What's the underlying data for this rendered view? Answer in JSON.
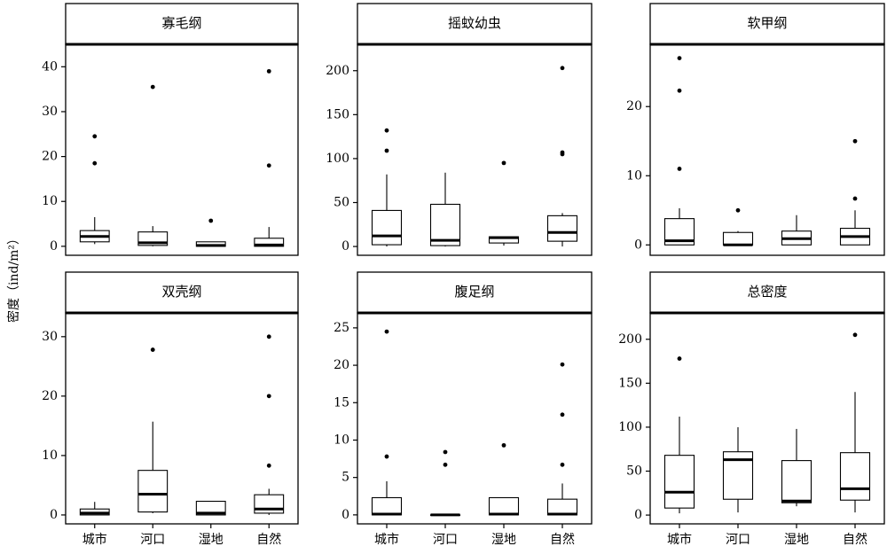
{
  "chart_data": {
    "type": "boxplot",
    "ylabel": "密度（ind/m²）",
    "categories": [
      "城市",
      "河口",
      "湿地",
      "自然"
    ],
    "panels": [
      {
        "title": "寡毛纲",
        "ylim": [
          -2,
          45
        ],
        "yticks": [
          0,
          10,
          20,
          30,
          40
        ],
        "boxes": [
          {
            "category": "城市",
            "whislo": 0.5,
            "q1": 1.0,
            "median": 2.2,
            "q3": 3.5,
            "whishi": 6.5,
            "outliers": [
              18.5,
              24.5
            ]
          },
          {
            "category": "河口",
            "whislo": 0,
            "q1": 0.2,
            "median": 0.8,
            "q3": 3.2,
            "whishi": 4.5,
            "outliers": [
              35.5
            ]
          },
          {
            "category": "湿地",
            "whislo": 0,
            "q1": 0,
            "median": 0.2,
            "q3": 1.0,
            "whishi": 1.0,
            "outliers": [
              5.7
            ]
          },
          {
            "category": "自然",
            "whislo": 0,
            "q1": 0,
            "median": 0.3,
            "q3": 1.8,
            "whishi": 4.3,
            "outliers": [
              18.0,
              39.0
            ]
          }
        ]
      },
      {
        "title": "摇蚊幼虫",
        "ylim": [
          -10,
          230
        ],
        "yticks": [
          0,
          50,
          100,
          150,
          200
        ],
        "boxes": [
          {
            "category": "城市",
            "whislo": 0,
            "q1": 2,
            "median": 12,
            "q3": 41,
            "whishi": 82,
            "outliers": [
              109,
              132
            ]
          },
          {
            "category": "河口",
            "whislo": 0,
            "q1": 1,
            "median": 7,
            "q3": 48,
            "whishi": 84,
            "outliers": []
          },
          {
            "category": "湿地",
            "whislo": 1,
            "q1": 4,
            "median": 10,
            "q3": 11,
            "whishi": 11,
            "outliers": [
              95
            ]
          },
          {
            "category": "自然",
            "whislo": 0,
            "q1": 6,
            "median": 16,
            "q3": 35,
            "whishi": 38,
            "outliers": [
              105,
              107,
              203
            ]
          }
        ]
      },
      {
        "title": "软甲纲",
        "ylim": [
          -1.5,
          29
        ],
        "yticks": [
          0,
          10,
          20
        ],
        "boxes": [
          {
            "category": "城市",
            "whislo": 0,
            "q1": 0,
            "median": 0.6,
            "q3": 3.8,
            "whishi": 5.3,
            "outliers": [
              11,
              22.3,
              27
            ]
          },
          {
            "category": "河口",
            "whislo": 0,
            "q1": 0,
            "median": 0,
            "q3": 1.8,
            "whishi": 2.0,
            "outliers": [
              5.0
            ]
          },
          {
            "category": "湿地",
            "whislo": 0,
            "q1": 0,
            "median": 0.9,
            "q3": 2.0,
            "whishi": 4.3,
            "outliers": []
          },
          {
            "category": "自然",
            "whislo": 0,
            "q1": 0,
            "median": 1.2,
            "q3": 2.4,
            "whishi": 5.0,
            "outliers": [
              6.7,
              15
            ]
          }
        ]
      },
      {
        "title": "双壳纲",
        "ylim": [
          -1.5,
          34
        ],
        "yticks": [
          0,
          10,
          20,
          30
        ],
        "boxes": [
          {
            "category": "城市",
            "whislo": 0,
            "q1": 0,
            "median": 0.3,
            "q3": 1.0,
            "whishi": 2.2,
            "outliers": []
          },
          {
            "category": "河口",
            "whislo": 0.3,
            "q1": 0.5,
            "median": 3.5,
            "q3": 7.5,
            "whishi": 15.7,
            "outliers": [
              27.8
            ]
          },
          {
            "category": "湿地",
            "whislo": 0,
            "q1": 0,
            "median": 0.3,
            "q3": 2.3,
            "whishi": 2.3,
            "outliers": []
          },
          {
            "category": "自然",
            "whislo": 0,
            "q1": 0.3,
            "median": 1.0,
            "q3": 3.4,
            "whishi": 4.4,
            "outliers": [
              8.3,
              20.0,
              30.0
            ]
          }
        ]
      },
      {
        "title": "腹足纲",
        "ylim": [
          -1.2,
          27
        ],
        "yticks": [
          0,
          5,
          10,
          15,
          20,
          25
        ],
        "boxes": [
          {
            "category": "城市",
            "whislo": 0,
            "q1": 0,
            "median": 0.1,
            "q3": 2.3,
            "whishi": 4.5,
            "outliers": [
              7.8,
              24.5
            ]
          },
          {
            "category": "河口",
            "whislo": 0,
            "q1": 0,
            "median": 0,
            "q3": 0,
            "whishi": 0,
            "outliers": [
              6.7,
              8.4
            ]
          },
          {
            "category": "湿地",
            "whislo": 0,
            "q1": 0,
            "median": 0.1,
            "q3": 2.3,
            "whishi": 2.3,
            "outliers": [
              9.3
            ]
          },
          {
            "category": "自然",
            "whislo": 0,
            "q1": 0,
            "median": 0.1,
            "q3": 2.1,
            "whishi": 4.2,
            "outliers": [
              6.7,
              13.4,
              20.1
            ]
          }
        ]
      },
      {
        "title": "总密度",
        "ylim": [
          -10,
          230
        ],
        "yticks": [
          0,
          50,
          100,
          150,
          200
        ],
        "boxes": [
          {
            "category": "城市",
            "whislo": 2,
            "q1": 8,
            "median": 26,
            "q3": 68,
            "whishi": 112,
            "outliers": [
              178
            ]
          },
          {
            "category": "河口",
            "whislo": 3,
            "q1": 18,
            "median": 63,
            "q3": 72,
            "whishi": 100,
            "outliers": []
          },
          {
            "category": "湿地",
            "whislo": 10,
            "q1": 14,
            "median": 16,
            "q3": 62,
            "whishi": 98,
            "outliers": []
          },
          {
            "category": "自然",
            "whislo": 3,
            "q1": 17,
            "median": 30,
            "q3": 71,
            "whishi": 140,
            "outliers": [
              205
            ]
          }
        ]
      }
    ]
  }
}
